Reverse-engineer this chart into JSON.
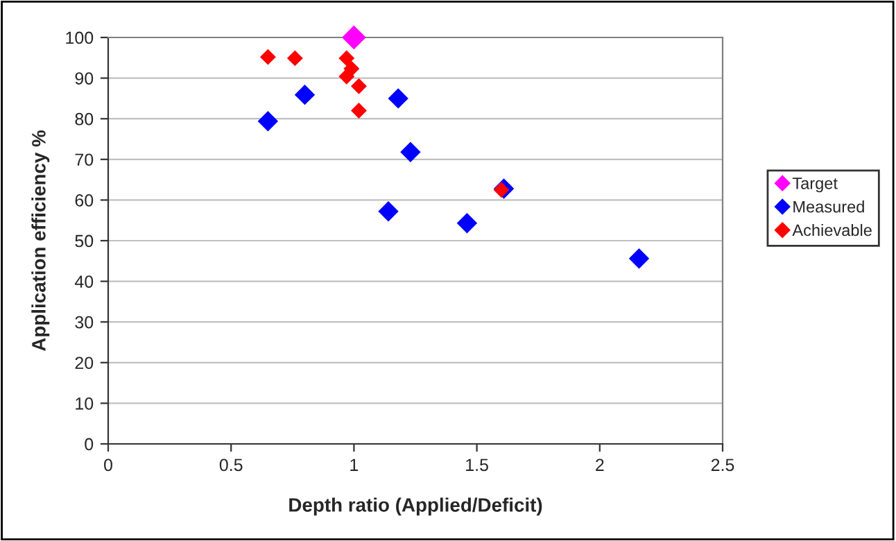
{
  "chart_data": {
    "type": "scatter",
    "xlabel": "Depth ratio (Applied/Deficit)",
    "ylabel": "Application efficiency %",
    "series": [
      {
        "name": "Target",
        "color": "#ff00ff",
        "x": [
          1.0
        ],
        "values": [
          100
        ]
      },
      {
        "name": "Measured",
        "color": "#0000ff",
        "x": [
          0.65,
          0.8,
          1.18,
          1.23,
          1.14,
          1.46,
          1.61,
          2.16
        ],
        "values": [
          79.4,
          85.9,
          85.0,
          71.8,
          57.2,
          54.3,
          62.8,
          45.6
        ]
      },
      {
        "name": "Achievable",
        "color": "#ff0000",
        "x": [
          0.65,
          0.76,
          0.97,
          0.99,
          0.97,
          1.02,
          1.02,
          1.6
        ],
        "values": [
          95.2,
          94.9,
          94.9,
          92.3,
          90.4,
          88.0,
          82.0,
          62.5
        ]
      }
    ],
    "xlim": [
      0,
      2.5
    ],
    "xticks": [
      0,
      0.5,
      1,
      1.5,
      2,
      2.5
    ],
    "ylim": [
      0,
      100
    ],
    "yticks": [
      0,
      10,
      20,
      30,
      40,
      50,
      60,
      70,
      80,
      90,
      100
    ],
    "grid": "y",
    "legend": "right",
    "marker": "diamond"
  }
}
